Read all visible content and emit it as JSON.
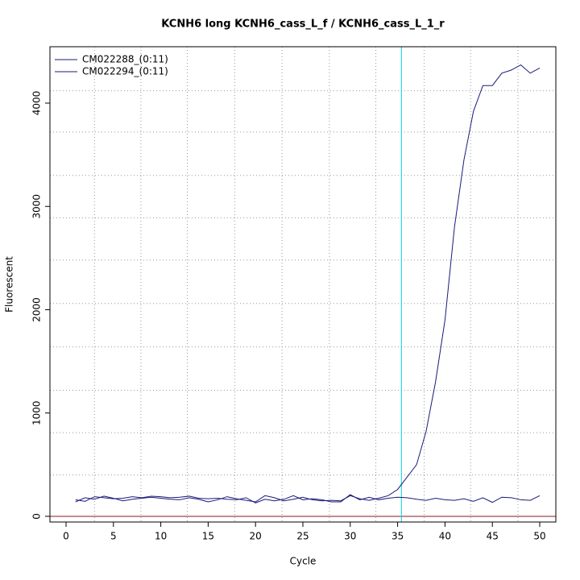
{
  "chart_data": {
    "type": "line",
    "title": "KCNH6 long KCNH6_cass_L_f / KCNH6_cass_L_1_r",
    "x_label": "Cycle",
    "y_label": "Fluorescent",
    "x": [
      1,
      2,
      3,
      4,
      5,
      6,
      7,
      8,
      9,
      10,
      11,
      12,
      13,
      14,
      15,
      16,
      17,
      18,
      19,
      20,
      21,
      22,
      23,
      24,
      25,
      26,
      27,
      28,
      29,
      30,
      31,
      32,
      33,
      34,
      35,
      36,
      37,
      38,
      39,
      40,
      41,
      42,
      43,
      44,
      45,
      46,
      47,
      48,
      49,
      50
    ],
    "series": [
      {
        "name": "CM022288_(0:11)",
        "color": "#1a1a7a",
        "values": [
          140,
          180,
          165,
          195,
          175,
          150,
          165,
          175,
          185,
          175,
          165,
          160,
          180,
          165,
          140,
          160,
          190,
          170,
          155,
          140,
          200,
          180,
          150,
          165,
          185,
          160,
          150,
          155,
          150,
          200,
          170,
          155,
          175,
          200,
          260,
          380,
          500,
          820,
          1300,
          1900,
          2800,
          3450,
          3920,
          4170,
          4170,
          4290,
          4320,
          4370,
          4290,
          4340
        ]
      },
      {
        "name": "CM022294_(0:11)",
        "color": "#1a1a7a",
        "values": [
          160,
          145,
          190,
          180,
          170,
          175,
          190,
          180,
          195,
          190,
          180,
          185,
          195,
          175,
          170,
          175,
          165,
          160,
          180,
          130,
          165,
          150,
          165,
          200,
          160,
          170,
          160,
          140,
          140,
          210,
          160,
          185,
          160,
          175,
          185,
          180,
          165,
          155,
          175,
          160,
          155,
          170,
          145,
          180,
          135,
          185,
          180,
          160,
          155,
          200
        ]
      }
    ],
    "xlim": [
      -1.7,
      51.7
    ],
    "ylim": [
      -55,
      4546
    ],
    "xticks": [
      0,
      5,
      10,
      15,
      20,
      25,
      30,
      35,
      40,
      45,
      50
    ],
    "yticks": [
      0,
      1000,
      2000,
      3000,
      4000
    ],
    "xgrid": [
      3,
      7.9,
      12.8,
      17.8,
      22.8,
      27.8,
      32.7,
      37.8,
      42.7,
      47.7
    ],
    "ygrid": [
      400,
      810,
      1220,
      1640,
      2060,
      2480,
      2890,
      3300,
      3720,
      4120
    ],
    "grid": true,
    "threshold_x": 35.4,
    "threshold_color": "#00d0e0",
    "baseline_y": 0,
    "baseline_color": "#8b1a1a",
    "legend": "top-left"
  }
}
